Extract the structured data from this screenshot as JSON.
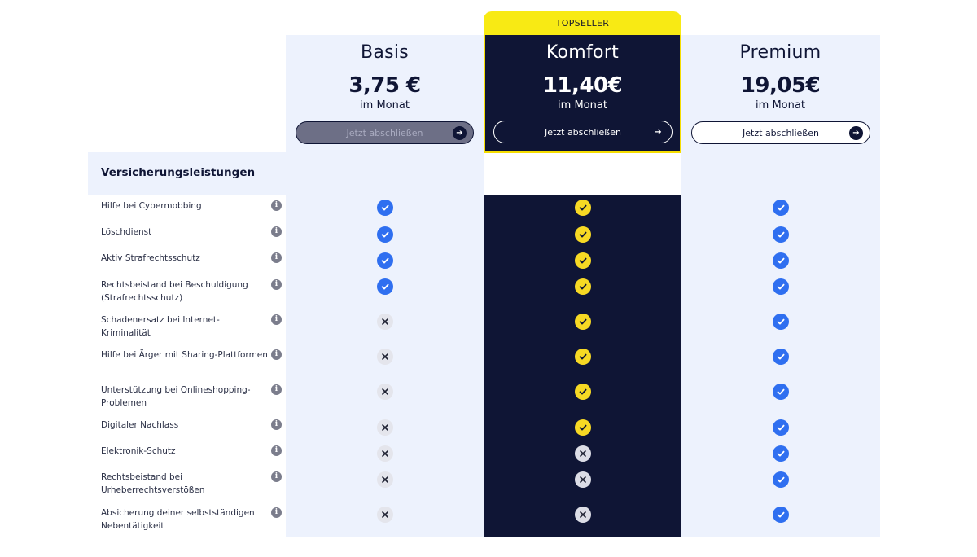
{
  "badge": "TOPSELLER",
  "plans": [
    {
      "name": "Basis",
      "price": "3,75 €",
      "period": "im Monat",
      "cta": "Jetzt abschließen"
    },
    {
      "name": "Komfort",
      "price": "11,40€",
      "period": "im Monat",
      "cta": "Jetzt abschließen"
    },
    {
      "name": "Premium",
      "price": "19,05€",
      "period": "im Monat",
      "cta": "Jetzt abschließen"
    }
  ],
  "section_title": "Versicherungsleistungen",
  "features": [
    {
      "label": "Hilfe bei Cybermobbing",
      "basis": true,
      "komfort": true,
      "premium": true
    },
    {
      "label": "Löschdienst",
      "basis": true,
      "komfort": true,
      "premium": true
    },
    {
      "label": "Aktiv Strafrechtsschutz",
      "basis": true,
      "komfort": true,
      "premium": true
    },
    {
      "label": "Rechtsbeistand bei Beschuldigung (Strafrechtsschutz)",
      "basis": true,
      "komfort": true,
      "premium": true
    },
    {
      "label": "Schadenersatz bei Internet-Kriminalität",
      "basis": false,
      "komfort": true,
      "premium": true
    },
    {
      "label": "Hilfe bei Ärger mit Sharing-Plattformen",
      "basis": false,
      "komfort": true,
      "premium": true
    },
    {
      "label": "Unterstützung bei Onlineshopping-Problemen",
      "basis": false,
      "komfort": true,
      "premium": true
    },
    {
      "label": "Digitaler Nachlass",
      "basis": false,
      "komfort": true,
      "premium": true
    },
    {
      "label": "Elektronik-Schutz",
      "basis": false,
      "komfort": false,
      "premium": true
    },
    {
      "label": "Rechtsbeistand bei Urheberrechtsverstößen",
      "basis": false,
      "komfort": false,
      "premium": true
    },
    {
      "label": "Absicherung deiner selbstständigen Nebentätigkeit",
      "basis": false,
      "komfort": false,
      "premium": true
    }
  ],
  "colors": {
    "navy": "#0f1535",
    "accent_yellow": "#f8ea14",
    "check_blue": "#2f6ff0",
    "check_yellow": "#f7d924",
    "column_bg": "#edf2fd"
  },
  "icons": {
    "info": "info-icon",
    "check": "check-icon",
    "cross": "cross-icon",
    "arrow": "arrow-right-icon"
  }
}
